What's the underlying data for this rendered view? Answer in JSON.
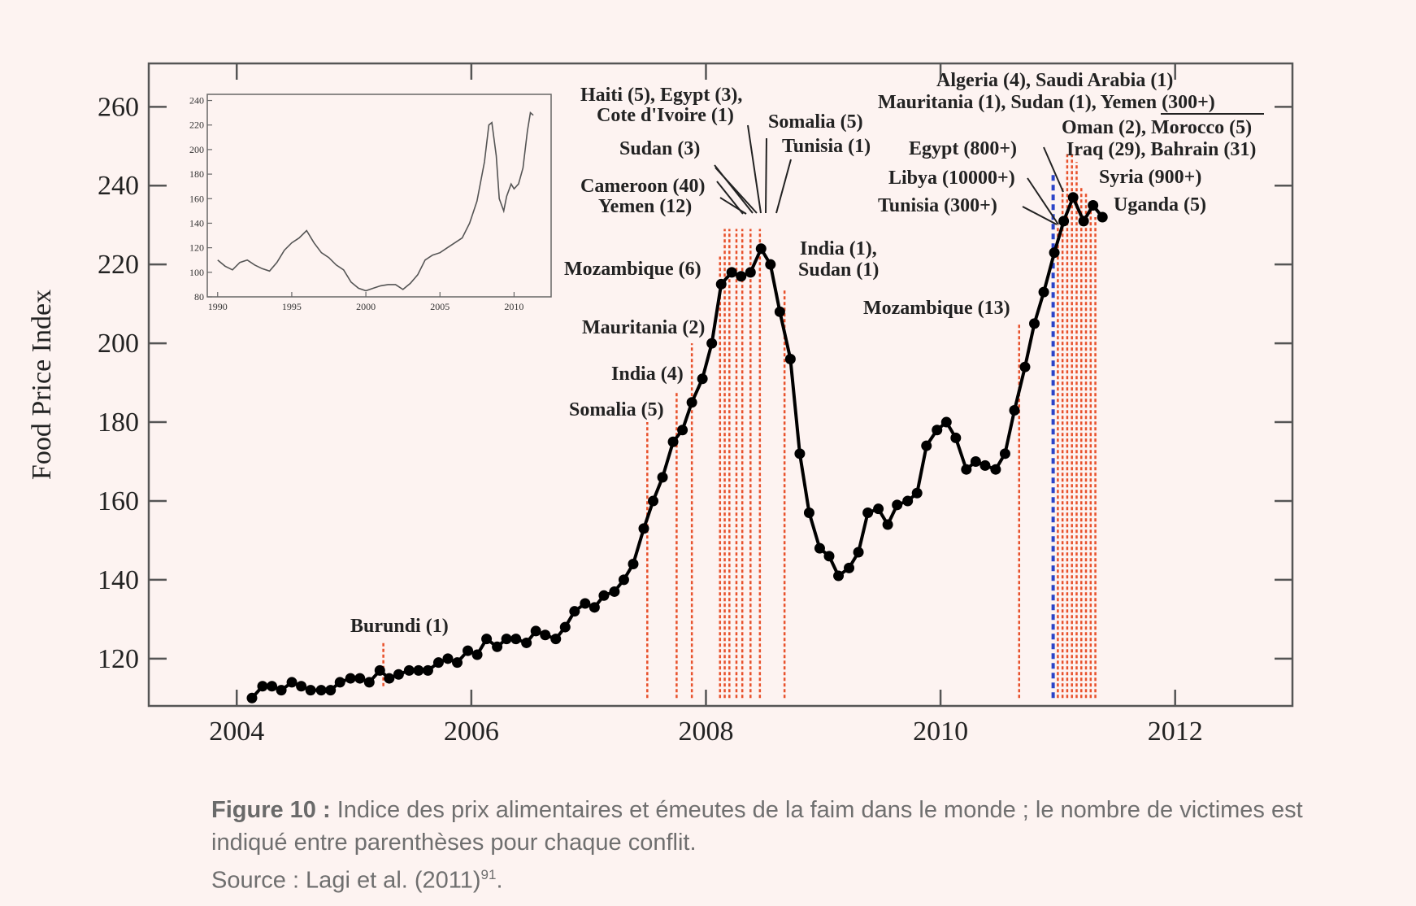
{
  "chart_data": [
    {
      "type": "line",
      "ylabel": "Food Price Index",
      "xlim": [
        2003.25,
        2013.0
      ],
      "ylim": [
        108,
        271
      ],
      "xticks": [
        2004,
        2006,
        2008,
        2010,
        2012
      ],
      "yticks": [
        120,
        140,
        160,
        180,
        200,
        220,
        240,
        260
      ],
      "x": [
        2004.13,
        2004.22,
        2004.3,
        2004.38,
        2004.47,
        2004.55,
        2004.63,
        2004.72,
        2004.8,
        2004.88,
        2004.97,
        2005.05,
        2005.13,
        2005.22,
        2005.3,
        2005.38,
        2005.47,
        2005.55,
        2005.63,
        2005.72,
        2005.8,
        2005.88,
        2005.97,
        2006.05,
        2006.13,
        2006.22,
        2006.3,
        2006.38,
        2006.47,
        2006.55,
        2006.63,
        2006.72,
        2006.8,
        2006.88,
        2006.97,
        2007.05,
        2007.13,
        2007.22,
        2007.3,
        2007.38,
        2007.47,
        2007.55,
        2007.63,
        2007.72,
        2007.8,
        2007.88,
        2007.97,
        2008.05,
        2008.13,
        2008.22,
        2008.3,
        2008.38,
        2008.47,
        2008.55,
        2008.63,
        2008.72,
        2008.8,
        2008.88,
        2008.97,
        2009.05,
        2009.13,
        2009.22,
        2009.3,
        2009.38,
        2009.47,
        2009.55,
        2009.63,
        2009.72,
        2009.8,
        2009.88,
        2009.97,
        2010.05,
        2010.13,
        2010.22,
        2010.3,
        2010.38,
        2010.47,
        2010.55,
        2010.63,
        2010.72,
        2010.8,
        2010.88,
        2010.97,
        2011.05,
        2011.13,
        2011.22,
        2011.3,
        2011.38
      ],
      "y": [
        110,
        113,
        113,
        112,
        114,
        113,
        112,
        112,
        112,
        114,
        115,
        115,
        114,
        117,
        115,
        116,
        117,
        117,
        117,
        119,
        120,
        119,
        122,
        121,
        125,
        123,
        125,
        125,
        124,
        127,
        126,
        125,
        128,
        132,
        134,
        133,
        136,
        137,
        140,
        144,
        153,
        160,
        166,
        175,
        178,
        185,
        191,
        200,
        215,
        218,
        217,
        218,
        224,
        220,
        208,
        196,
        172,
        157,
        148,
        146,
        141,
        143,
        147,
        157,
        158,
        154,
        159,
        160,
        162,
        174,
        178,
        180,
        176,
        168,
        170,
        169,
        168,
        172,
        183,
        194,
        205,
        213,
        223,
        231,
        237,
        231,
        235,
        232
      ],
      "annotations": [
        {
          "label": "Burundi (1)",
          "x": 2005.25,
          "bottom": 113,
          "top": 124
        },
        {
          "label": "Somalia (5)",
          "x": 2007.5,
          "bottom": 110,
          "top": 180
        },
        {
          "label": "India (4)",
          "x": 2007.75,
          "bottom": 110,
          "top": 188
        },
        {
          "label": "Mauritania (2)",
          "x": 2007.88,
          "bottom": 110,
          "top": 200
        },
        {
          "label": "Mozambique (6)",
          "x": 2008.12,
          "bottom": 110,
          "top": 222
        },
        {
          "label": "Yemen (12)",
          "x": 2008.16,
          "bottom": 110,
          "top": 229
        },
        {
          "label": "Cameroon (40)",
          "x": 2008.2,
          "bottom": 110,
          "top": 229
        },
        {
          "label": "Sudan (3)",
          "x": 2008.26,
          "bottom": 110,
          "top": 229
        },
        {
          "label": "Haiti (5), Egypt (3), Cote d'Ivoire (1)",
          "x": 2008.31,
          "bottom": 110,
          "top": 229
        },
        {
          "label": "Somalia (5)",
          "x": 2008.38,
          "bottom": 110,
          "top": 229
        },
        {
          "label": "Tunisia (1)",
          "x": 2008.46,
          "bottom": 110,
          "top": 229
        },
        {
          "label": "India (1), Sudan (1)",
          "x": 2008.67,
          "bottom": 110,
          "top": 214
        },
        {
          "label": "Mozambique (13)",
          "x": 2010.67,
          "bottom": 110,
          "top": 205
        },
        {
          "label": "Tunisia (300+)",
          "x": 2011.0,
          "bottom": 110,
          "top": 230
        },
        {
          "label": "Libya (10000+)",
          "x": 2011.04,
          "bottom": 110,
          "top": 240
        },
        {
          "label": "Egypt (800+)",
          "x": 2011.08,
          "bottom": 110,
          "top": 248
        },
        {
          "label": "Algeria (4), Saudi Arabia (1)",
          "x": 2011.12,
          "bottom": 110,
          "top": 248
        },
        {
          "label": "Mauritania (1), Sudan (1), Yemen (300+)",
          "x": 2011.16,
          "bottom": 110,
          "top": 246
        },
        {
          "label": "Oman (2), Morocco (5)",
          "x": 2011.2,
          "bottom": 110,
          "top": 240
        },
        {
          "label": "Iraq (29), Bahrain (31)",
          "x": 2011.24,
          "bottom": 110,
          "top": 238
        },
        {
          "label": "Syria (900+)",
          "x": 2011.28,
          "bottom": 110,
          "top": 235
        },
        {
          "label": "Uganda (5)",
          "x": 2011.32,
          "bottom": 110,
          "top": 232
        }
      ],
      "vline_blue": 2010.96,
      "colors": {
        "line": "#000000",
        "riot": "#e8502a",
        "blue": "#2b44c8"
      }
    },
    {
      "type": "line",
      "xlim": [
        1989.3,
        2012.5
      ],
      "ylim": [
        80,
        245
      ],
      "xticks": [
        1990,
        1995,
        2000,
        2005,
        2010
      ],
      "yticks": [
        80,
        100,
        120,
        140,
        160,
        180,
        200,
        220,
        240
      ],
      "x": [
        1990,
        1990.5,
        1991,
        1991.5,
        1992,
        1992.5,
        1993,
        1993.5,
        1994,
        1994.5,
        1995,
        1995.5,
        1996,
        1996.5,
        1997,
        1997.5,
        1998,
        1998.5,
        1999,
        1999.5,
        2000,
        2000.5,
        2001,
        2001.5,
        2002,
        2002.5,
        2003,
        2003.5,
        2004,
        2004.5,
        2005,
        2005.5,
        2006,
        2006.5,
        2007,
        2007.5,
        2008,
        2008.3,
        2008.5,
        2008.8,
        2009,
        2009.3,
        2009.5,
        2009.8,
        2010,
        2010.3,
        2010.6,
        2010.9,
        2011.1,
        2011.3
      ],
      "y": [
        110,
        105,
        102,
        108,
        110,
        106,
        103,
        101,
        108,
        118,
        124,
        128,
        134,
        124,
        116,
        112,
        106,
        102,
        92,
        87,
        85,
        87,
        89,
        90,
        90,
        86,
        91,
        98,
        110,
        114,
        116,
        120,
        124,
        128,
        140,
        158,
        190,
        220,
        222,
        195,
        160,
        150,
        162,
        172,
        168,
        172,
        185,
        215,
        230,
        228
      ]
    }
  ],
  "caption": {
    "prefix": "Figure 10 :",
    "text": " Indice des prix alimentaires et émeutes de la faim dans le monde ; le nombre de victimes est indiqué entre parenthèses pour chaque conflit.",
    "source": "Source : Lagi et al. (2011)",
    "source_ref": "91",
    "source_end": "."
  }
}
